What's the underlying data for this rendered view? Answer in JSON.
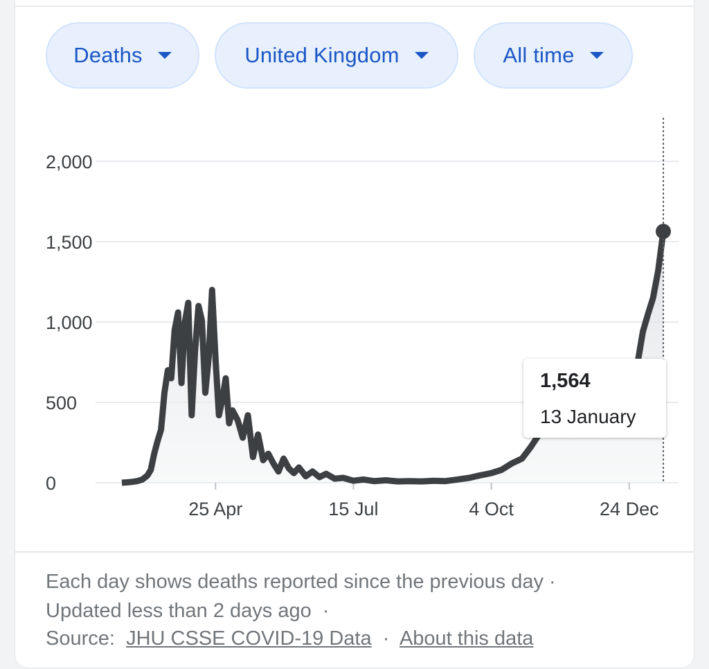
{
  "filters": {
    "metric": "Deaths",
    "region": "United Kingdom",
    "range": "All time"
  },
  "tooltip": {
    "value": "1,564",
    "date": "13 January"
  },
  "footer": {
    "note": "Each day shows deaths reported since the previous day",
    "updated": "Updated less than 2 days ago",
    "source_label": "Source:",
    "source_link": "JHU CSSE COVID-19 Data",
    "about_link": "About this data",
    "separator": "·"
  },
  "colors": {
    "accent": "#1a56c4",
    "line": "#3c4043",
    "chip_bg": "#e8f0fe"
  },
  "chart_data": {
    "type": "area",
    "ylim": [
      0,
      2000
    ],
    "yticks": [
      0,
      500,
      1000,
      1500,
      2000
    ],
    "ytick_labels": [
      "0",
      "500",
      "1,000",
      "1,500",
      "2,000"
    ],
    "xtick_labels": [
      "25 Apr",
      "15 Jul",
      "4 Oct",
      "24 Dec"
    ],
    "xtick_dates": [
      "2020-04-25",
      "2020-07-15",
      "2020-10-04",
      "2020-12-24"
    ],
    "grid": true,
    "highlight": {
      "x": "2021-01-13",
      "y": 1564
    },
    "x": [
      "2020-03-01",
      "2020-03-04",
      "2020-03-07",
      "2020-03-10",
      "2020-03-13",
      "2020-03-16",
      "2020-03-18",
      "2020-03-20",
      "2020-03-22",
      "2020-03-24",
      "2020-03-26",
      "2020-03-28",
      "2020-03-30",
      "2020-04-01",
      "2020-04-03",
      "2020-04-05",
      "2020-04-07",
      "2020-04-09",
      "2020-04-11",
      "2020-04-13",
      "2020-04-15",
      "2020-04-17",
      "2020-04-19",
      "2020-04-21",
      "2020-04-23",
      "2020-04-25",
      "2020-04-27",
      "2020-04-29",
      "2020-05-01",
      "2020-05-03",
      "2020-05-05",
      "2020-05-08",
      "2020-05-11",
      "2020-05-14",
      "2020-05-17",
      "2020-05-20",
      "2020-05-23",
      "2020-05-26",
      "2020-05-29",
      "2020-06-01",
      "2020-06-04",
      "2020-06-07",
      "2020-06-10",
      "2020-06-13",
      "2020-06-17",
      "2020-06-21",
      "2020-06-25",
      "2020-06-29",
      "2020-07-04",
      "2020-07-09",
      "2020-07-15",
      "2020-07-21",
      "2020-07-27",
      "2020-08-03",
      "2020-08-10",
      "2020-08-17",
      "2020-08-24",
      "2020-08-31",
      "2020-09-07",
      "2020-09-14",
      "2020-09-21",
      "2020-09-27",
      "2020-10-04",
      "2020-10-10",
      "2020-10-16",
      "2020-10-22",
      "2020-10-27",
      "2020-11-01",
      "2020-11-06",
      "2020-11-11",
      "2020-11-16",
      "2020-11-21",
      "2020-11-26",
      "2020-12-01",
      "2020-12-06",
      "2020-12-11",
      "2020-12-16",
      "2020-12-21",
      "2020-12-24",
      "2020-12-28",
      "2021-01-01",
      "2021-01-04",
      "2021-01-07",
      "2021-01-10",
      "2021-01-13"
    ],
    "y": [
      0,
      2,
      5,
      10,
      20,
      45,
      80,
      180,
      260,
      330,
      560,
      700,
      650,
      950,
      1060,
      620,
      1000,
      1120,
      420,
      820,
      1100,
      1010,
      560,
      780,
      1200,
      770,
      420,
      520,
      650,
      370,
      450,
      390,
      280,
      420,
      160,
      300,
      140,
      180,
      120,
      70,
      150,
      90,
      60,
      95,
      40,
      70,
      35,
      55,
      25,
      30,
      12,
      20,
      10,
      15,
      8,
      10,
      8,
      12,
      10,
      20,
      30,
      45,
      60,
      80,
      120,
      150,
      220,
      300,
      380,
      380,
      430,
      480,
      500,
      420,
      500,
      480,
      520,
      480,
      580,
      690,
      940,
      1050,
      1150,
      1320,
      1564
    ]
  }
}
